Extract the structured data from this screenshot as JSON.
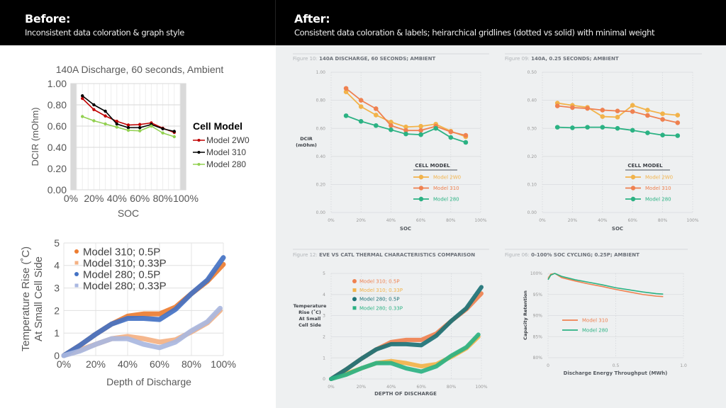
{
  "header": {
    "before_title": "Before:",
    "before_subtitle": "Inconsistent data coloration & graph style",
    "after_title": "After:",
    "after_subtitle": "Consistent data coloration & labels; heirarchical gridlines (dotted vs solid) with minimal weight"
  },
  "chart_data": [
    {
      "id": "before-dcir",
      "type": "line",
      "title": "140A Discharge, 60 seconds, Ambient",
      "xlabel": "SOC",
      "ylabel": "DCIR (mOhm)",
      "x_ticks": [
        "0%",
        "20%",
        "40%",
        "60%",
        "80%",
        "100%"
      ],
      "y_ticks": [
        "0.00",
        "0.20",
        "0.40",
        "0.60",
        "0.80",
        "1.00"
      ],
      "xlim": [
        0,
        100
      ],
      "ylim": [
        0,
        1
      ],
      "grid": true,
      "legend_title": "Cell Model",
      "legend_placement": "right",
      "series": [
        {
          "name": "Model 2W0",
          "color": "#c00000",
          "x": [
            10,
            20,
            30,
            40,
            50,
            60,
            70,
            80,
            90
          ],
          "y": [
            0.86,
            0.755,
            0.695,
            0.645,
            0.61,
            0.615,
            0.63,
            0.58,
            0.54
          ]
        },
        {
          "name": "Model 310",
          "color": "#000000",
          "x": [
            10,
            20,
            30,
            40,
            50,
            60,
            70,
            80,
            90
          ],
          "y": [
            0.885,
            0.8,
            0.74,
            0.62,
            0.585,
            0.585,
            0.615,
            0.575,
            0.55
          ]
        },
        {
          "name": "Model 280",
          "color": "#92d050",
          "x": [
            10,
            20,
            30,
            40,
            50,
            60,
            70,
            80,
            90
          ],
          "y": [
            0.69,
            0.65,
            0.62,
            0.59,
            0.56,
            0.555,
            0.6,
            0.535,
            0.5
          ]
        }
      ]
    },
    {
      "id": "before-thermal",
      "type": "scatter",
      "title": "",
      "xlabel": "Depth of Discharge",
      "ylabel": [
        "Temperature Rise (˚C)",
        "At Small Cell Side"
      ],
      "x_ticks": [
        "0%",
        "20%",
        "40%",
        "60%",
        "80%",
        "100%"
      ],
      "y_ticks": [
        "0",
        "1",
        "2",
        "3",
        "4",
        "5"
      ],
      "xlim": [
        0,
        100
      ],
      "ylim": [
        0,
        5
      ],
      "grid": true,
      "legend_placement": "top-left",
      "series": [
        {
          "name": "Model 310; 0.5P",
          "color": "#ed7d31",
          "x": [
            0,
            10,
            20,
            30,
            40,
            50,
            60,
            70,
            80,
            90,
            100
          ],
          "y": [
            0,
            0.45,
            0.95,
            1.4,
            1.75,
            1.85,
            1.85,
            2.15,
            2.75,
            3.3,
            4.05
          ]
        },
        {
          "name": "Model 310; 0.33P",
          "color": "#f4b183",
          "x": [
            0,
            10,
            20,
            30,
            40,
            50,
            60,
            70,
            80,
            90,
            98
          ],
          "y": [
            0,
            0.25,
            0.5,
            0.75,
            0.85,
            0.75,
            0.6,
            0.7,
            1.05,
            1.45,
            2.0
          ]
        },
        {
          "name": "Model 280; 0.5P",
          "color": "#4472c4",
          "x": [
            0,
            10,
            20,
            30,
            40,
            50,
            60,
            70,
            80,
            90,
            100
          ],
          "y": [
            0,
            0.45,
            0.95,
            1.4,
            1.65,
            1.65,
            1.6,
            2.05,
            2.75,
            3.35,
            4.35
          ]
        },
        {
          "name": "Model 280; 0.33P",
          "color": "#a9b7e0",
          "x": [
            0,
            10,
            20,
            30,
            40,
            50,
            60,
            70,
            80,
            90,
            98
          ],
          "y": [
            0,
            0.2,
            0.5,
            0.75,
            0.75,
            0.5,
            0.35,
            0.6,
            1.1,
            1.5,
            2.1
          ]
        }
      ]
    },
    {
      "id": "after-fig10",
      "type": "line",
      "figure_label": "Figure 10:",
      "title": "140A DISCHARGE, 60 SECONDS; AMBIENT",
      "xlabel": "SOC",
      "ylabel": [
        "DCIR",
        "(mOhm)"
      ],
      "x_ticks": [
        "0%",
        "20%",
        "40%",
        "60%",
        "80%",
        "100%"
      ],
      "y_ticks": [
        "0.00",
        "0.20",
        "0.40",
        "0.60",
        "0.80",
        "1.00"
      ],
      "xlim": [
        0,
        100
      ],
      "ylim": [
        0,
        1
      ],
      "grid": true,
      "legend_title": "CELL MODEL",
      "legend_placement": "bottom-right",
      "series": [
        {
          "name": "Model 2W0",
          "color": "#f2b34a",
          "x": [
            10,
            20,
            30,
            40,
            50,
            60,
            70,
            80,
            90
          ],
          "y": [
            0.86,
            0.755,
            0.695,
            0.645,
            0.61,
            0.615,
            0.63,
            0.58,
            0.54
          ]
        },
        {
          "name": "Model 310",
          "color": "#ef8150",
          "x": [
            10,
            20,
            30,
            40,
            50,
            60,
            70,
            80,
            90
          ],
          "y": [
            0.885,
            0.8,
            0.74,
            0.62,
            0.585,
            0.585,
            0.615,
            0.575,
            0.55
          ]
        },
        {
          "name": "Model 280",
          "color": "#2bb283",
          "x": [
            10,
            20,
            30,
            40,
            50,
            60,
            70,
            80,
            90
          ],
          "y": [
            0.69,
            0.65,
            0.62,
            0.59,
            0.56,
            0.555,
            0.6,
            0.535,
            0.5
          ]
        }
      ]
    },
    {
      "id": "after-fig09",
      "type": "line",
      "figure_label": "Figure 09:",
      "title": "140A, 0.25 SECONDS; AMBIENT",
      "xlabel": "SOC",
      "ylabel": "",
      "x_ticks": [
        "0%",
        "20%",
        "40%",
        "60%",
        "80%",
        "100%"
      ],
      "y_ticks": [
        "0.00",
        "0.10",
        "0.20",
        "0.30",
        "0.40",
        "0.50"
      ],
      "xlim": [
        0,
        100
      ],
      "ylim": [
        0,
        0.5
      ],
      "grid": true,
      "legend_title": "CELL MODEL",
      "legend_placement": "bottom-right",
      "series": [
        {
          "name": "Model 2W0",
          "color": "#f2b34a",
          "x": [
            10,
            20,
            30,
            40,
            50,
            60,
            70,
            80,
            90
          ],
          "y": [
            0.39,
            0.382,
            0.375,
            0.342,
            0.34,
            0.382,
            0.365,
            0.352,
            0.347
          ]
        },
        {
          "name": "Model 310",
          "color": "#ef8150",
          "x": [
            10,
            20,
            30,
            40,
            50,
            60,
            70,
            80,
            90
          ],
          "y": [
            0.38,
            0.374,
            0.371,
            0.365,
            0.362,
            0.36,
            0.346,
            0.332,
            0.32
          ]
        },
        {
          "name": "Model 280",
          "color": "#2bb283",
          "x": [
            10,
            20,
            30,
            40,
            50,
            60,
            70,
            80,
            90
          ],
          "y": [
            0.304,
            0.302,
            0.304,
            0.304,
            0.3,
            0.293,
            0.284,
            0.276,
            0.274
          ]
        }
      ]
    },
    {
      "id": "after-fig12",
      "type": "scatter",
      "figure_label": "Figure 12:",
      "title": "EVE VS CATL THERMAL CHARACTERISTICS COMPARISON",
      "xlabel": "DEPTH OF DISCHARGE",
      "ylabel": [
        "Temperature",
        "Rise (˚C)",
        "At Small",
        "Cell Side"
      ],
      "x_ticks": [
        "0%",
        "20%",
        "40%",
        "60%",
        "80%",
        "100%"
      ],
      "y_ticks": [
        "0",
        "1",
        "2",
        "3",
        "4",
        "5"
      ],
      "xlim": [
        0,
        100
      ],
      "ylim": [
        0,
        5
      ],
      "grid": true,
      "legend_placement": "top-left",
      "series": [
        {
          "name": "Model 310; 0.5P",
          "color": "#ef8150",
          "x": [
            0,
            10,
            20,
            30,
            40,
            50,
            60,
            70,
            80,
            90,
            100
          ],
          "y": [
            0,
            0.45,
            0.95,
            1.4,
            1.75,
            1.85,
            1.85,
            2.15,
            2.75,
            3.3,
            4.05
          ]
        },
        {
          "name": "Model 310; 0.33P",
          "color": "#f2b34a",
          "x": [
            0,
            10,
            20,
            30,
            40,
            50,
            60,
            70,
            80,
            90,
            98
          ],
          "y": [
            0,
            0.25,
            0.5,
            0.75,
            0.85,
            0.75,
            0.6,
            0.7,
            1.05,
            1.45,
            2.0
          ]
        },
        {
          "name": "Model 280; 0.5P",
          "color": "#1d7276",
          "x": [
            0,
            10,
            20,
            30,
            40,
            50,
            60,
            70,
            80,
            90,
            100
          ],
          "y": [
            0,
            0.45,
            0.95,
            1.4,
            1.65,
            1.65,
            1.6,
            2.05,
            2.75,
            3.35,
            4.35
          ]
        },
        {
          "name": "Model 280; 0.33P",
          "color": "#2bb283",
          "x": [
            0,
            10,
            20,
            30,
            40,
            50,
            60,
            70,
            80,
            90,
            98
          ],
          "y": [
            0,
            0.2,
            0.5,
            0.75,
            0.75,
            0.5,
            0.35,
            0.6,
            1.1,
            1.5,
            2.1
          ]
        }
      ]
    },
    {
      "id": "after-fig06",
      "type": "line",
      "figure_label": "Figure 06:",
      "title": "0-100% SOC CYCLING; 0.25P; AMBIENT",
      "xlabel": "Discharge Energy Throughput (MWh)",
      "ylabel": "Capacity Retention",
      "x_ticks": [
        "0",
        "0.5",
        "1.0"
      ],
      "y_ticks": [
        "80%",
        "85%",
        "90%",
        "95%",
        "100%"
      ],
      "xlim": [
        0,
        1
      ],
      "ylim": [
        80,
        100
      ],
      "grid": true,
      "legend_placement": "middle-left",
      "series": [
        {
          "name": "Model 310",
          "color": "#ef8150",
          "x": [
            0,
            0.02,
            0.05,
            0.1,
            0.2,
            0.3,
            0.4,
            0.5,
            0.6,
            0.7,
            0.8,
            0.85
          ],
          "y": [
            98.8,
            99.8,
            100,
            99.0,
            98.2,
            97.5,
            96.9,
            96.2,
            95.6,
            95.0,
            94.6,
            94.5
          ]
        },
        {
          "name": "Model 280",
          "color": "#2bb283",
          "x": [
            0,
            0.02,
            0.05,
            0.1,
            0.2,
            0.3,
            0.4,
            0.5,
            0.6,
            0.7,
            0.8,
            0.85
          ],
          "y": [
            98.5,
            99.6,
            100,
            99.3,
            98.5,
            97.9,
            97.3,
            96.6,
            96.1,
            95.6,
            95.2,
            95.1
          ]
        }
      ]
    }
  ]
}
